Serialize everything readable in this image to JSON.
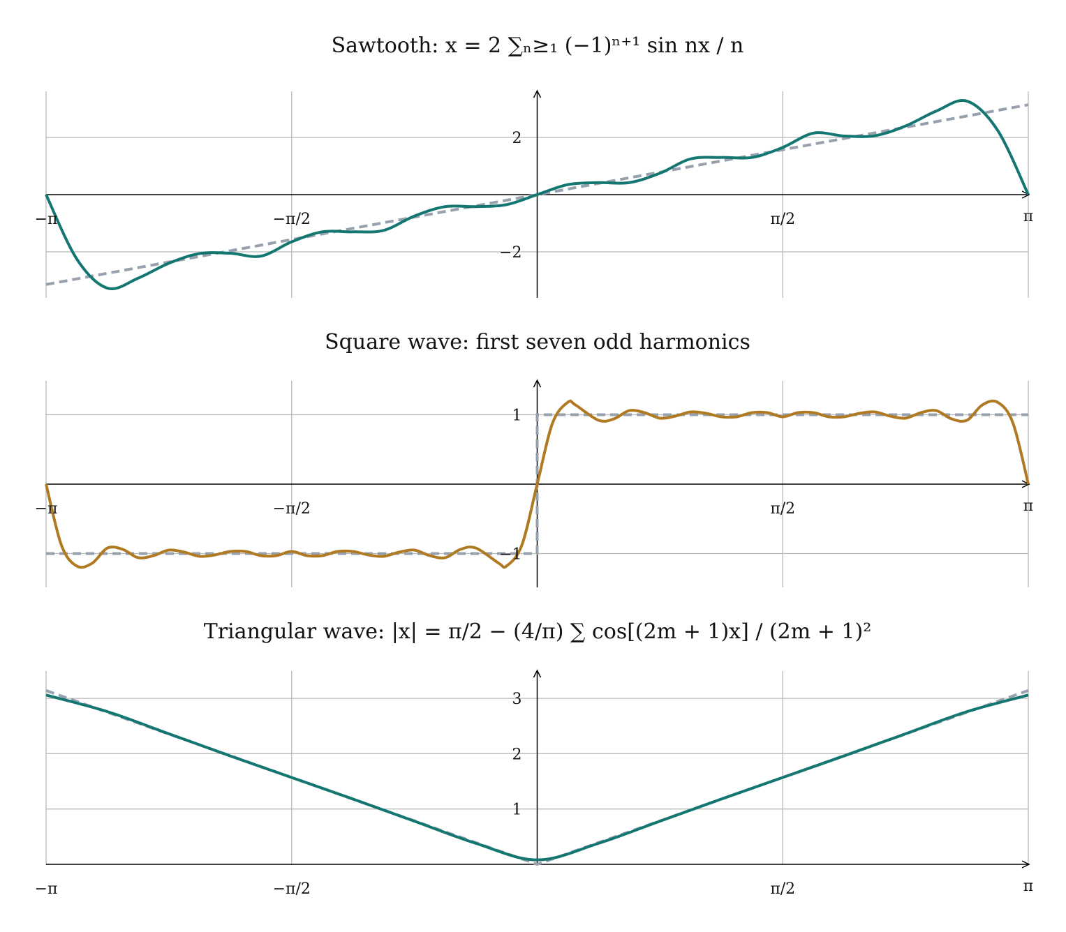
{
  "chart_data": [
    {
      "type": "line",
      "title": "Sawtooth: x = 2 ∑ₙ≥₁ (−1)ⁿ⁺¹ sin nx / n",
      "xlim": [
        -3.14159,
        3.14159
      ],
      "ylim": [
        -3.6,
        3.6
      ],
      "xticks": [
        -3.14159,
        -1.5708,
        1.5708,
        3.14159
      ],
      "xtick_labels": [
        "−π",
        "−π/2",
        "π/2",
        "π"
      ],
      "yticks": [
        -2,
        2
      ],
      "ytick_labels": [
        "−2",
        "2"
      ],
      "grid": true,
      "series": [
        {
          "role": "target",
          "style": "dashed",
          "color": "#97a0ad",
          "x": [
            -3.1416,
            -2.3562,
            -1.5708,
            -0.7854,
            0,
            0.7854,
            1.5708,
            2.3562,
            3.1416
          ],
          "y": [
            -3.1416,
            -2.3562,
            -1.5708,
            -0.7854,
            0,
            0.7854,
            1.5708,
            2.3562,
            3.1416
          ]
        },
        {
          "role": "partial-sum",
          "style": "solid",
          "color": "#137670",
          "x": [
            -3.1416,
            -2.9452,
            -2.7489,
            -2.5525,
            -2.3562,
            -2.1598,
            -1.9635,
            -1.7671,
            -1.5708,
            -1.3744,
            -1.1781,
            -0.9817,
            -0.7854,
            -0.589,
            -0.3927,
            -0.1963,
            0,
            0.1963,
            0.3927,
            0.589,
            0.7854,
            0.9817,
            1.1781,
            1.3744,
            1.5708,
            1.7671,
            1.9635,
            2.1598,
            2.3562,
            2.5525,
            2.7489,
            2.9452,
            3.1416
          ],
          "y": [
            0,
            -2.25,
            -3.27,
            -2.92,
            -2.4,
            -2.06,
            -2.05,
            -2.15,
            -1.65,
            -1.3,
            -1.3,
            -1.25,
            -0.75,
            -0.42,
            -0.42,
            -0.35,
            0,
            0.35,
            0.42,
            0.42,
            0.75,
            1.25,
            1.3,
            1.3,
            1.65,
            2.15,
            2.05,
            2.06,
            2.4,
            2.92,
            3.27,
            2.25,
            0
          ]
        }
      ]
    },
    {
      "type": "line",
      "title": "Square wave: first seven odd harmonics",
      "xlim": [
        -3.14159,
        3.14159
      ],
      "ylim": [
        -1.5,
        1.5
      ],
      "xticks": [
        -3.14159,
        -1.5708,
        1.5708,
        3.14159
      ],
      "xtick_labels": [
        "−π",
        "−π/2",
        "π/2",
        "π"
      ],
      "yticks": [
        -1,
        1
      ],
      "ytick_labels": [
        "−1",
        "1"
      ],
      "grid": true,
      "series": [
        {
          "role": "target",
          "style": "dashed",
          "color": "#97a0ad",
          "x": [
            -3.1416,
            -0.0001,
            0.0001,
            3.1416
          ],
          "y": [
            -1,
            -1,
            1,
            1
          ]
        },
        {
          "role": "partial-sum",
          "style": "solid",
          "color": "#b07a22",
          "x": [
            0,
            0.0982,
            0.1963,
            0.2454,
            0.3927,
            0.4909,
            0.589,
            0.6872,
            0.7854,
            0.8836,
            0.9817,
            1.0799,
            1.1781,
            1.2763,
            1.3744,
            1.4726,
            1.5708,
            1.669,
            1.7671,
            1.8653,
            1.9635,
            2.0617,
            2.1598,
            2.258,
            2.3562,
            2.4544,
            2.5525,
            2.6507,
            2.7489,
            2.8471,
            2.9452,
            3.0434,
            3.1416
          ],
          "y": [
            0,
            0.88,
            1.18,
            1.14,
            0.92,
            0.94,
            1.06,
            1.03,
            0.95,
            0.98,
            1.04,
            1.02,
            0.97,
            0.97,
            1.03,
            1.03,
            0.97,
            1.03,
            1.03,
            0.97,
            0.97,
            1.02,
            1.04,
            0.98,
            0.95,
            1.03,
            1.06,
            0.94,
            0.92,
            1.14,
            1.18,
            0.88,
            0
          ],
          "odd_symmetric": true
        }
      ]
    },
    {
      "type": "line",
      "title": "Triangular wave: |x| = π/2 − (4/π) ∑ cos[(2m + 1)x] / (2m + 1)²",
      "xlim": [
        -3.14159,
        3.14159
      ],
      "ylim": [
        0,
        3.5
      ],
      "xticks": [
        -3.14159,
        -1.5708,
        1.5708,
        3.14159
      ],
      "xtick_labels": [
        "−π",
        "−π/2",
        "π/2",
        "π"
      ],
      "yticks": [
        1,
        2,
        3
      ],
      "ytick_labels": [
        "1",
        "2",
        "3"
      ],
      "grid": true,
      "series": [
        {
          "role": "target",
          "style": "dashed",
          "color": "#97a0ad",
          "x": [
            -3.1416,
            0,
            3.1416
          ],
          "y": [
            3.1416,
            0,
            3.1416
          ]
        },
        {
          "role": "partial-sum",
          "style": "solid",
          "color": "#137670",
          "x": [
            -3.1416,
            -2.7489,
            -2.3562,
            -1.9635,
            -1.5708,
            -1.1781,
            -0.7854,
            -0.3927,
            0,
            0.3927,
            0.7854,
            1.1781,
            1.5708,
            1.9635,
            2.3562,
            2.7489,
            3.1416
          ],
          "y": [
            3.06,
            2.76,
            2.36,
            1.96,
            1.57,
            1.18,
            0.78,
            0.38,
            0.08,
            0.38,
            0.78,
            1.18,
            1.57,
            1.96,
            2.36,
            2.76,
            3.06
          ]
        }
      ]
    }
  ]
}
